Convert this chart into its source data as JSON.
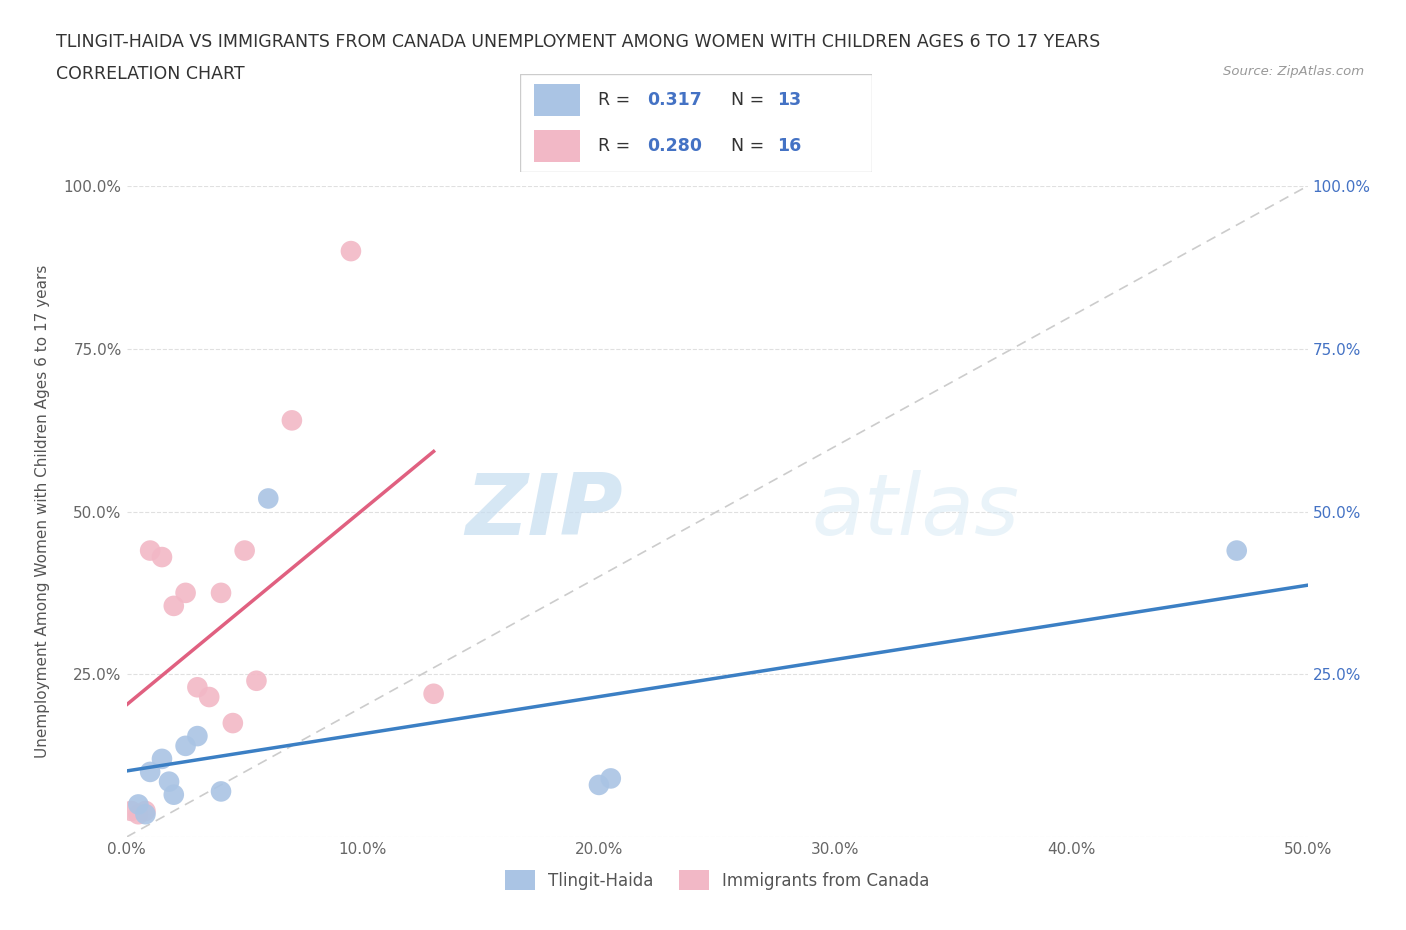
{
  "title_line1": "TLINGIT-HAIDA VS IMMIGRANTS FROM CANADA UNEMPLOYMENT AMONG WOMEN WITH CHILDREN AGES 6 TO 17 YEARS",
  "title_line2": "CORRELATION CHART",
  "source_text": "Source: ZipAtlas.com",
  "ylabel": "Unemployment Among Women with Children Ages 6 to 17 years",
  "xlim": [
    0.0,
    0.5
  ],
  "ylim": [
    0.0,
    1.0
  ],
  "xticks": [
    0.0,
    0.1,
    0.2,
    0.3,
    0.4,
    0.5
  ],
  "yticks": [
    0.0,
    0.25,
    0.5,
    0.75,
    1.0
  ],
  "xticklabels": [
    "0.0%",
    "10.0%",
    "20.0%",
    "30.0%",
    "40.0%",
    "50.0%"
  ],
  "yticklabels": [
    "",
    "25.0%",
    "50.0%",
    "75.0%",
    "100.0%"
  ],
  "tlingit_color": "#aac4e4",
  "immigrants_color": "#f2b8c6",
  "tlingit_line_color": "#3b7fc4",
  "immigrants_line_color": "#e06080",
  "diag_color": "#cccccc",
  "background_color": "#ffffff",
  "grid_color": "#e0e0e0",
  "tlingit_x": [
    0.005,
    0.008,
    0.01,
    0.015,
    0.018,
    0.02,
    0.025,
    0.03,
    0.04,
    0.06,
    0.2,
    0.205,
    0.47
  ],
  "tlingit_y": [
    0.05,
    0.035,
    0.1,
    0.12,
    0.085,
    0.065,
    0.14,
    0.155,
    0.07,
    0.52,
    0.08,
    0.09,
    0.44
  ],
  "immigrants_x": [
    0.002,
    0.005,
    0.008,
    0.01,
    0.015,
    0.02,
    0.025,
    0.03,
    0.035,
    0.04,
    0.045,
    0.05,
    0.055,
    0.07,
    0.095,
    0.13
  ],
  "immigrants_y": [
    0.04,
    0.035,
    0.04,
    0.44,
    0.43,
    0.355,
    0.375,
    0.23,
    0.215,
    0.375,
    0.175,
    0.44,
    0.24,
    0.64,
    0.9,
    0.22
  ],
  "r_tlingit": "0.317",
  "n_tlingit": "13",
  "r_immigrants": "0.280",
  "n_immigrants": "16",
  "legend_labels": [
    "Tlingit-Haida",
    "Immigrants from Canada"
  ],
  "watermark_zip": "ZIP",
  "watermark_atlas": "atlas",
  "marker_size": 220
}
